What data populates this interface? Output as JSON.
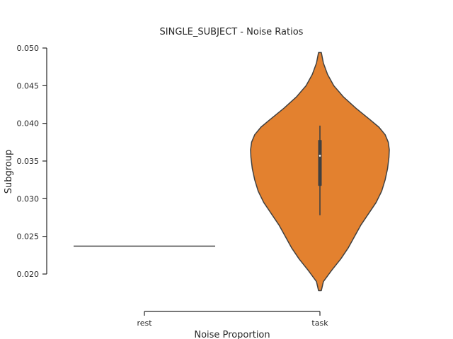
{
  "chart_data": {
    "type": "violin",
    "title": "SINGLE_SUBJECT - Noise Ratios",
    "xlabel": "Noise Proportion",
    "ylabel": "Subgroup",
    "categories": [
      "rest",
      "task"
    ],
    "ylim": [
      0.0145,
      0.05
    ],
    "yticks": [
      0.02,
      0.025,
      0.03,
      0.035,
      0.04,
      0.045,
      0.05
    ],
    "ytick_labels": [
      "0.020",
      "0.025",
      "0.030",
      "0.035",
      "0.040",
      "0.045",
      "0.050"
    ],
    "series": [
      {
        "category": "rest",
        "values": [
          0.0237
        ],
        "color": "#1f77b4"
      },
      {
        "category": "task",
        "min": 0.0178,
        "max": 0.0494,
        "q1": 0.0317,
        "median": 0.0357,
        "q3": 0.0378,
        "whisker_low": 0.0278,
        "whisker_high": 0.0397,
        "density": [
          [
            0.0178,
            0.02
          ],
          [
            0.019,
            0.05
          ],
          [
            0.0205,
            0.17
          ],
          [
            0.022,
            0.3
          ],
          [
            0.0235,
            0.41
          ],
          [
            0.025,
            0.5
          ],
          [
            0.0265,
            0.59
          ],
          [
            0.028,
            0.7
          ],
          [
            0.0295,
            0.81
          ],
          [
            0.031,
            0.89
          ],
          [
            0.0325,
            0.94
          ],
          [
            0.034,
            0.975
          ],
          [
            0.0355,
            0.995
          ],
          [
            0.0365,
            1.0
          ],
          [
            0.0375,
            0.985
          ],
          [
            0.0385,
            0.94
          ],
          [
            0.0395,
            0.85
          ],
          [
            0.0405,
            0.72
          ],
          [
            0.042,
            0.52
          ],
          [
            0.0435,
            0.34
          ],
          [
            0.045,
            0.2
          ],
          [
            0.0465,
            0.11
          ],
          [
            0.048,
            0.05
          ],
          [
            0.0494,
            0.02
          ]
        ],
        "color": "#e3812f"
      }
    ],
    "grid": false
  }
}
